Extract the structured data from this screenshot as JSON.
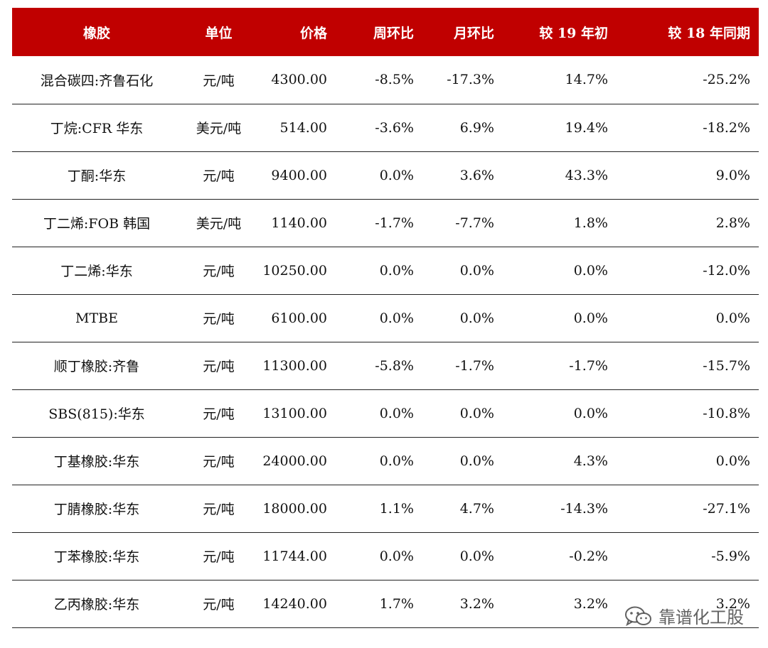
{
  "headers": {
    "name": "橡胶",
    "unit": "单位",
    "price": "价格",
    "wow": "周环比",
    "mom": "月环比",
    "ytd": "较 19 年初",
    "yoy": "较 18 年同期"
  },
  "rows": [
    {
      "name": "混合碳四:齐鲁石化",
      "unit": "元/吨",
      "price": "4300.00",
      "wow": "-8.5%",
      "mom": "-17.3%",
      "ytd": "14.7%",
      "yoy": "-25.2%"
    },
    {
      "name": "丁烷:CFR 华东",
      "unit": "美元/吨",
      "price": "514.00",
      "wow": "-3.6%",
      "mom": "6.9%",
      "ytd": "19.4%",
      "yoy": "-18.2%"
    },
    {
      "name": "丁酮:华东",
      "unit": "元/吨",
      "price": "9400.00",
      "wow": "0.0%",
      "mom": "3.6%",
      "ytd": "43.3%",
      "yoy": "9.0%"
    },
    {
      "name": "丁二烯:FOB 韩国",
      "unit": "美元/吨",
      "price": "1140.00",
      "wow": "-1.7%",
      "mom": "-7.7%",
      "ytd": "1.8%",
      "yoy": "2.8%"
    },
    {
      "name": "丁二烯:华东",
      "unit": "元/吨",
      "price": "10250.00",
      "wow": "0.0%",
      "mom": "0.0%",
      "ytd": "0.0%",
      "yoy": "-12.0%"
    },
    {
      "name": "MTBE",
      "unit": "元/吨",
      "price": "6100.00",
      "wow": "0.0%",
      "mom": "0.0%",
      "ytd": "0.0%",
      "yoy": "0.0%"
    },
    {
      "name": "顺丁橡胶:齐鲁",
      "unit": "元/吨",
      "price": "11300.00",
      "wow": "-5.8%",
      "mom": "-1.7%",
      "ytd": "-1.7%",
      "yoy": "-15.7%"
    },
    {
      "name": "SBS(815):华东",
      "unit": "元/吨",
      "price": "13100.00",
      "wow": "0.0%",
      "mom": "0.0%",
      "ytd": "0.0%",
      "yoy": "-10.8%"
    },
    {
      "name": "丁基橡胶:华东",
      "unit": "元/吨",
      "price": "24000.00",
      "wow": "0.0%",
      "mom": "0.0%",
      "ytd": "4.3%",
      "yoy": "0.0%"
    },
    {
      "name": "丁腈橡胶:华东",
      "unit": "元/吨",
      "price": "18000.00",
      "wow": "1.1%",
      "mom": "4.7%",
      "ytd": "-14.3%",
      "yoy": "-27.1%"
    },
    {
      "name": "丁苯橡胶:华东",
      "unit": "元/吨",
      "price": "11744.00",
      "wow": "0.0%",
      "mom": "0.0%",
      "ytd": "-0.2%",
      "yoy": "-5.9%"
    },
    {
      "name": "乙丙橡胶:华东",
      "unit": "元/吨",
      "price": "14240.00",
      "wow": "1.7%",
      "mom": "3.2%",
      "ytd": "3.2%",
      "yoy": "3.2%"
    }
  ],
  "watermark": {
    "text": "靠谱化工股",
    "icon": "wechat-icon"
  },
  "colors": {
    "header_bg": "#c00000",
    "header_text": "#ffffff",
    "row_border": "#222222"
  }
}
